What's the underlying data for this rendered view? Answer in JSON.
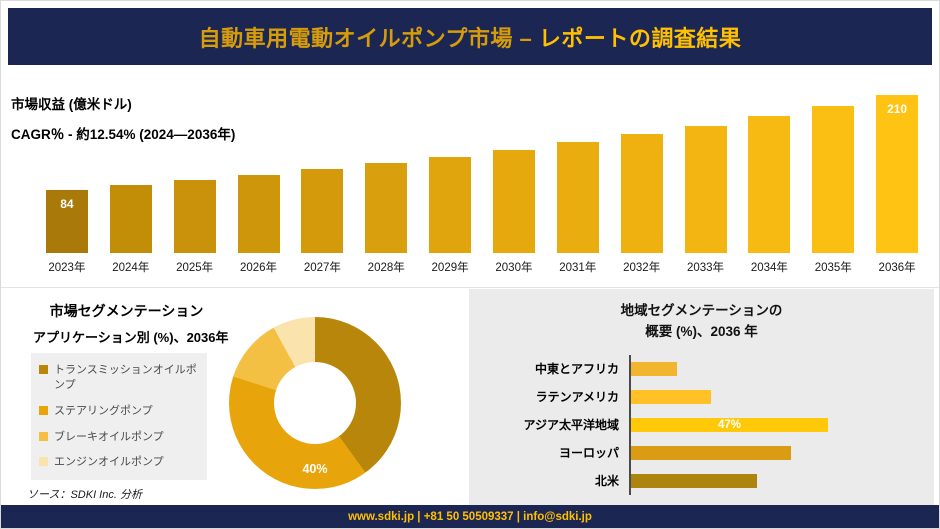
{
  "header": {
    "title_main": "自動車用電動オイルポンプ市場 –",
    "title_accent": "レポートの調査結果"
  },
  "chart_data": [
    {
      "id": "revenue",
      "type": "bar",
      "title": "市場収益 (億米ドル)",
      "subtitle": "CAGR％ - 約12.54% (2024―2036年)",
      "categories": [
        "2023年",
        "2024年",
        "2025年",
        "2026年",
        "2027年",
        "2028年",
        "2029年",
        "2030年",
        "2031年",
        "2032年",
        "2033年",
        "2034年",
        "2035年",
        "2036年"
      ],
      "values": [
        84,
        90,
        97,
        104,
        111,
        119,
        128,
        137,
        147,
        158,
        169,
        182,
        195,
        210
      ],
      "bar_colors": [
        "#A9790A",
        "#C28E08",
        "#C9920A",
        "#CE960B",
        "#D49A0C",
        "#DA9F0C",
        "#E0A40D",
        "#E5A90E",
        "#EAAD0F",
        "#EFB110",
        "#F3B511",
        "#F7BA12",
        "#FBBE13",
        "#FFC314"
      ],
      "value_labels": {
        "0": "84",
        "13": "210"
      },
      "ylim": [
        0,
        210
      ],
      "grid": false,
      "legend": "none"
    },
    {
      "id": "application-donut",
      "type": "pie",
      "title": "市場セグメンテーション",
      "subtitle": "アプリケーション別 (%)、2036年",
      "labels": [
        "トランスミッションオイルポンプ",
        "ステアリングポンプ",
        "ブレーキオイルポンプ",
        "エンジンオイルポンプ"
      ],
      "values": [
        40,
        40,
        12,
        8
      ],
      "colors": [
        "#B8860B",
        "#E8A50B",
        "#F4C043",
        "#FBE3AE"
      ],
      "annotation": "40%",
      "legend_position": "left"
    },
    {
      "id": "region",
      "type": "bar",
      "orientation": "horizontal",
      "title": "地域セグメンテーションの",
      "title_line2": "概要 (%)、2036 年",
      "categories": [
        "中東とアフリカ",
        "ラテンアメリカ",
        "アジア太平洋地域",
        "ヨーロッパ",
        "北米"
      ],
      "values": [
        11,
        19,
        47,
        38,
        30
      ],
      "colors": [
        "#F2B52E",
        "#FFC125",
        "#FFC808",
        "#D99C12",
        "#AD850E"
      ],
      "annotations": [
        {
          "category": "アジア太平洋地域",
          "label": "47%"
        }
      ],
      "xlim": [
        0,
        50
      ],
      "grid": false
    }
  ],
  "source": "ソース：SDKI Inc. 分析",
  "footer": {
    "text": "www.sdki.jp | +81 50 50509337 | info@sdki.jp"
  },
  "colors": {
    "navy": "#1B2653",
    "title_gold": "#D79C0A",
    "accent_yellow": "#FFC000",
    "panel_gray": "#EBEBEB",
    "legend_bg": "#EFEFEF",
    "axis_gray": "#4A4A4A"
  }
}
